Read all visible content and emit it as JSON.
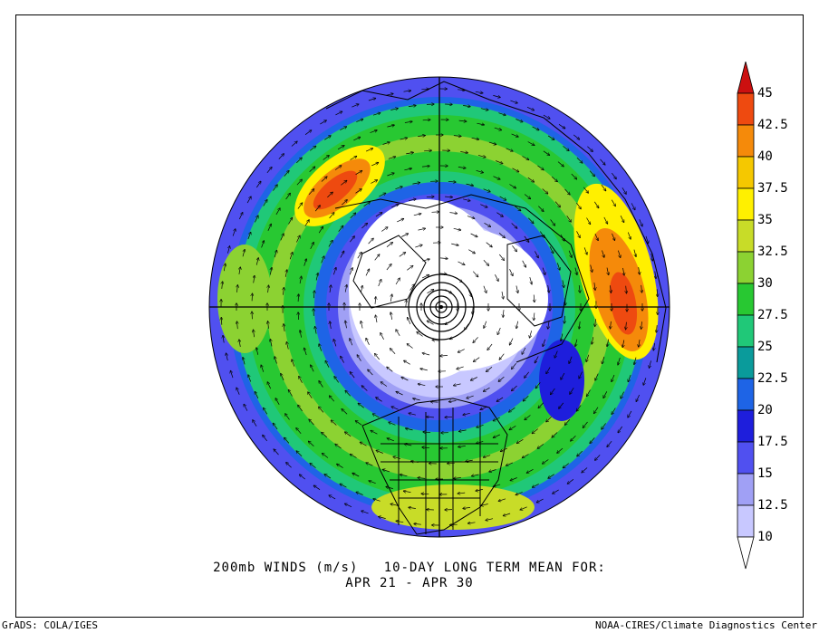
{
  "caption": {
    "line1": "200mb WINDS (m/s)   10-DAY LONG TERM MEAN FOR:",
    "line2": "APR 21 - APR 30"
  },
  "footer": {
    "left": "GrADS: COLA/IGES",
    "right": "NOAA-CIRES/Climate Diagnostics Center"
  },
  "colorbar": {
    "levels": [
      "45",
      "42.5",
      "40",
      "37.5",
      "35",
      "32.5",
      "30",
      "27.5",
      "25",
      "22.5",
      "20",
      "17.5",
      "15",
      "12.5",
      "10"
    ],
    "colors": [
      "#cc1010",
      "#ee4a10",
      "#f58a0a",
      "#f5c800",
      "#fff000",
      "#c8dc28",
      "#8cd232",
      "#28c832",
      "#20c878",
      "#0a9b9b",
      "#1e64e6",
      "#1e1edc",
      "#5050f0",
      "#a0a0f5",
      "#c8c8ff",
      "#ffffff"
    ]
  },
  "map": {
    "projection": "north polar stereographic",
    "shading": "wind speed (m/s)",
    "overlay": "wind vectors"
  }
}
